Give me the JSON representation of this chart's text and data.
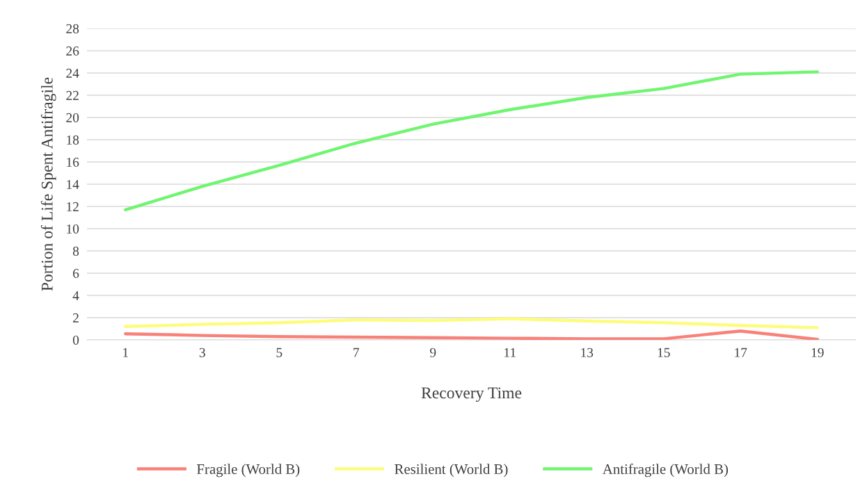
{
  "chart_data": {
    "type": "line",
    "xlabel": "Recovery Time",
    "ylabel": "Portion of Life Spent Antifragile",
    "categories": [
      "1",
      "3",
      "5",
      "7",
      "9",
      "11",
      "13",
      "15",
      "17",
      "19"
    ],
    "series": [
      {
        "name": "Fragile (World B)",
        "color": "#f8817a",
        "values": [
          0.55,
          0.4,
          0.3,
          0.25,
          0.2,
          0.15,
          0.1,
          0.1,
          0.8,
          0.05
        ]
      },
      {
        "name": "Resilient (World B)",
        "color": "#fdfc7c",
        "values": [
          1.2,
          1.4,
          1.55,
          1.8,
          1.75,
          1.9,
          1.7,
          1.55,
          1.3,
          1.1
        ]
      },
      {
        "name": "Antifragile (World B)",
        "color": "#70f570",
        "values": [
          11.7,
          13.8,
          15.7,
          17.7,
          19.4,
          20.7,
          21.8,
          22.6,
          23.9,
          24.1
        ]
      }
    ],
    "ylim": [
      0,
      28
    ],
    "yticks": [
      0,
      2,
      4,
      6,
      8,
      10,
      12,
      14,
      16,
      18,
      20,
      22,
      24,
      26,
      28
    ],
    "grid": "y",
    "legend": "bottom",
    "marker": "none",
    "line_style": "solid"
  }
}
